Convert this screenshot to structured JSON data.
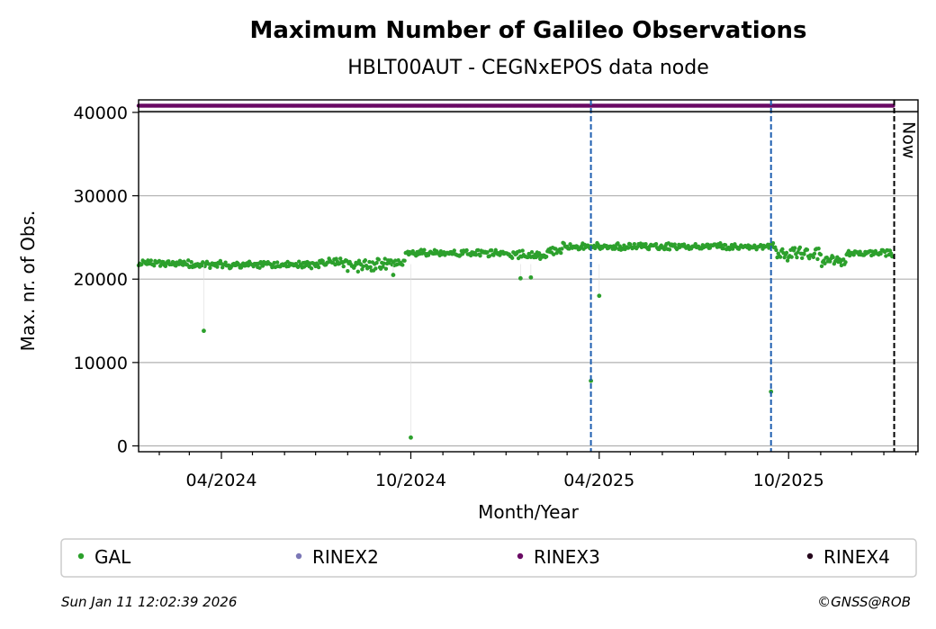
{
  "chart_data": {
    "type": "scatter",
    "title": "Maximum Number of Galileo Observations",
    "subtitle": "HBLT00AUT - CEGNxEPOS data node",
    "xlabel": "Month/Year",
    "ylabel": "Max. nr. of Obs.",
    "xlim": [
      "2024-01-12",
      "2026-02-03"
    ],
    "ylim": [
      -700,
      41500
    ],
    "x_ticks": [
      {
        "date": "2024-04-01",
        "label": "04/2024"
      },
      {
        "date": "2024-10-01",
        "label": "10/2024"
      },
      {
        "date": "2025-04-01",
        "label": "04/2025"
      },
      {
        "date": "2025-10-01",
        "label": "10/2025"
      }
    ],
    "y_ticks": [
      0,
      10000,
      20000,
      30000,
      40000
    ],
    "grid": "y",
    "legend_position": "below plot",
    "series": [
      {
        "name": "GAL",
        "color": "#2ca02c",
        "segments": [
          {
            "start": "2024-01-12",
            "end": "2024-03-01",
            "base": 21900,
            "spread": 600
          },
          {
            "start": "2024-03-01",
            "end": "2024-07-01",
            "base": 21700,
            "spread": 700
          },
          {
            "start": "2024-07-01",
            "end": "2024-08-01",
            "base": 22000,
            "spread": 900
          },
          {
            "start": "2024-08-01",
            "end": "2024-09-10",
            "base": 21700,
            "spread": 1300
          },
          {
            "start": "2024-09-10",
            "end": "2024-09-26",
            "base": 21900,
            "spread": 900
          },
          {
            "start": "2024-09-26",
            "end": "2025-01-01",
            "base": 23100,
            "spread": 700
          },
          {
            "start": "2025-01-01",
            "end": "2025-02-10",
            "base": 22900,
            "spread": 800
          },
          {
            "start": "2025-02-10",
            "end": "2025-02-25",
            "base": 23500,
            "spread": 900
          },
          {
            "start": "2025-02-25",
            "end": "2025-09-20",
            "base": 23900,
            "spread": 700
          },
          {
            "start": "2025-09-20",
            "end": "2025-11-01",
            "base": 23000,
            "spread": 1500
          },
          {
            "start": "2025-11-01",
            "end": "2025-11-26",
            "base": 22200,
            "spread": 1100
          },
          {
            "start": "2025-11-26",
            "end": "2026-01-10",
            "base": 23100,
            "spread": 800
          }
        ],
        "outliers": [
          {
            "x": "2024-03-15",
            "y": 13800
          },
          {
            "x": "2024-10-01",
            "y": 1000
          },
          {
            "x": "2025-03-24",
            "y": 7800
          },
          {
            "x": "2025-04-01",
            "y": 18000
          },
          {
            "x": "2025-09-14",
            "y": 6500
          },
          {
            "x": "2025-01-15",
            "y": 20100
          },
          {
            "x": "2025-01-25",
            "y": 20200
          },
          {
            "x": "2024-09-14",
            "y": 20500
          }
        ]
      },
      {
        "name": "RINEX3",
        "color": "#6a0a64",
        "start": "2024-01-12",
        "end": "2026-01-10",
        "y": 40800
      }
    ],
    "reference_lines": [
      {
        "date": "2025-03-24",
        "color": "#1f5fb0",
        "style": "dashed"
      },
      {
        "date": "2025-09-14",
        "color": "#1f5fb0",
        "style": "dashed"
      },
      {
        "date": "2026-01-11",
        "color": "#000000",
        "style": "dashed",
        "label": "Now"
      }
    ],
    "legend": [
      {
        "label": "GAL",
        "color": "#2ca02c"
      },
      {
        "label": "RINEX2",
        "color": "#7b77b6"
      },
      {
        "label": "RINEX3",
        "color": "#6a0a64"
      },
      {
        "label": "RINEX4",
        "color": "#25061c"
      }
    ]
  },
  "footer": {
    "timestamp": "Sun Jan 11 12:02:39 2026",
    "credit": "©GNSS@ROB"
  }
}
